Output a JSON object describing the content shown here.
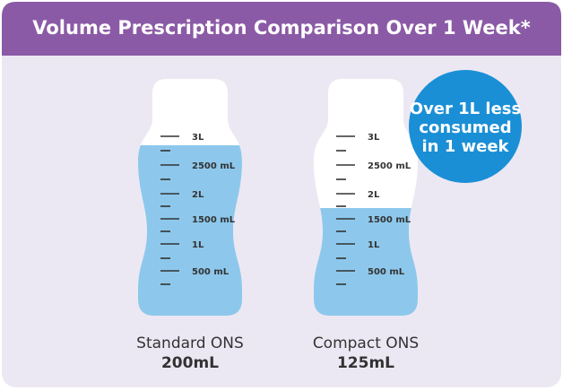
{
  "header": {
    "title": "Volume Prescription Comparison Over 1 Week*"
  },
  "bottles": [
    {
      "name": "Standard ONS",
      "volume": "200mL"
    },
    {
      "name": "Compact ONS",
      "volume": "125mL"
    }
  ],
  "scale_labels": [
    "3L",
    "2500 mL",
    "2L",
    "1500 mL",
    "1L",
    "500 mL"
  ],
  "badge": {
    "lines": [
      "Over 1L less",
      "consumed",
      "in 1 week"
    ]
  }
}
